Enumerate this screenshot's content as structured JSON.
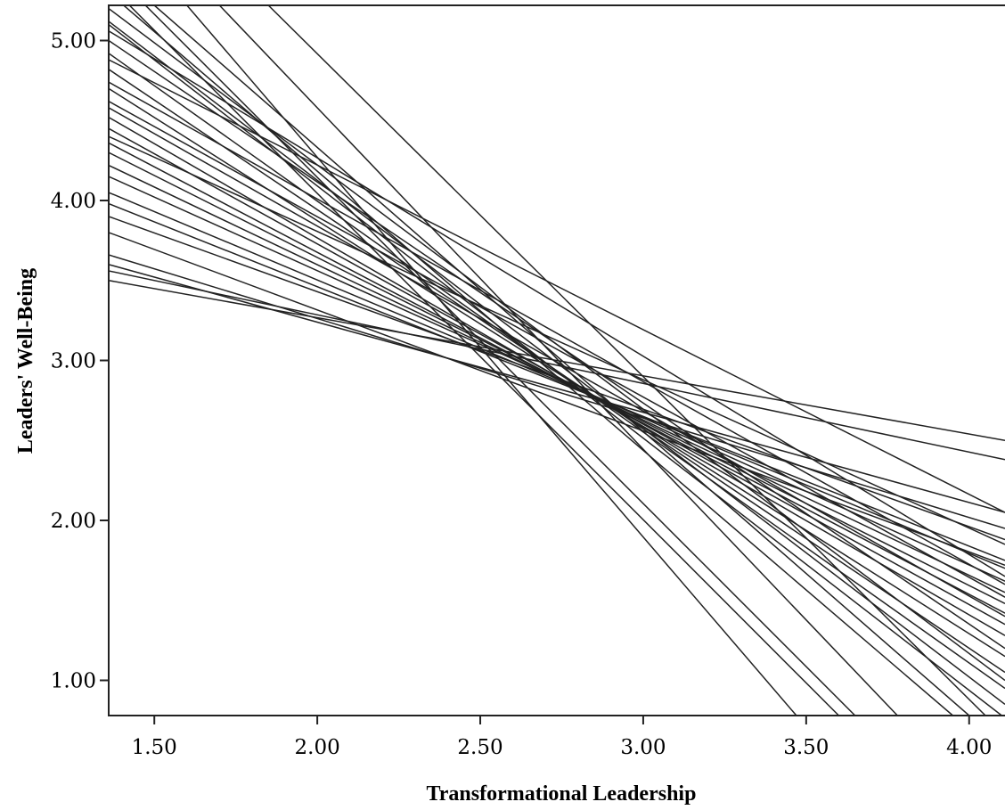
{
  "chart_data": {
    "type": "line",
    "title": "",
    "xlabel": "Transformational Leadership",
    "ylabel": "Leaders' Well-Being",
    "xlim": [
      1.36,
      4.11
    ],
    "ylim": [
      0.78,
      5.22
    ],
    "grid": false,
    "legend": "none",
    "xticks": [
      {
        "value": 1.5,
        "label": "1.50"
      },
      {
        "value": 2.0,
        "label": "2.00"
      },
      {
        "value": 2.5,
        "label": "2.50"
      },
      {
        "value": 3.0,
        "label": "3.00"
      },
      {
        "value": 3.5,
        "label": "3.50"
      },
      {
        "value": 4.0,
        "label": "4.00"
      }
    ],
    "yticks": [
      {
        "value": 1.0,
        "label": "1.00"
      },
      {
        "value": 2.0,
        "label": "2.00"
      },
      {
        "value": 3.0,
        "label": "3.00"
      },
      {
        "value": 4.0,
        "label": "4.00"
      },
      {
        "value": 5.0,
        "label": "5.00"
      }
    ],
    "series": [
      {
        "x": [
          1.36,
          4.11
        ],
        "y": [
          3.5,
          2.5
        ]
      },
      {
        "x": [
          1.36,
          4.11
        ],
        "y": [
          3.56,
          2.38
        ]
      },
      {
        "x": [
          1.36,
          4.11
        ],
        "y": [
          3.6,
          2.05
        ]
      },
      {
        "x": [
          1.36,
          4.11
        ],
        "y": [
          3.66,
          1.95
        ]
      },
      {
        "x": [
          1.36,
          4.11
        ],
        "y": [
          3.9,
          1.88
        ]
      },
      {
        "x": [
          1.36,
          4.11
        ],
        "y": [
          3.98,
          1.75
        ]
      },
      {
        "x": [
          1.36,
          4.11
        ],
        "y": [
          4.05,
          1.7
        ]
      },
      {
        "x": [
          1.36,
          4.11
        ],
        "y": [
          4.15,
          1.62
        ]
      },
      {
        "x": [
          1.36,
          4.11
        ],
        "y": [
          4.22,
          1.55
        ]
      },
      {
        "x": [
          1.36,
          4.11
        ],
        "y": [
          4.3,
          1.48
        ]
      },
      {
        "x": [
          1.36,
          4.11
        ],
        "y": [
          4.36,
          1.42
        ]
      },
      {
        "x": [
          1.36,
          4.11
        ],
        "y": [
          4.45,
          1.35
        ]
      },
      {
        "x": [
          1.36,
          4.11
        ],
        "y": [
          4.52,
          1.28
        ]
      },
      {
        "x": [
          1.36,
          4.11
        ],
        "y": [
          4.58,
          1.4
        ]
      },
      {
        "x": [
          1.36,
          4.11
        ],
        "y": [
          4.62,
          1.52
        ]
      },
      {
        "x": [
          1.36,
          4.11
        ],
        "y": [
          4.7,
          1.15
        ]
      },
      {
        "x": [
          1.36,
          4.11
        ],
        "y": [
          4.74,
          1.6
        ]
      },
      {
        "x": [
          1.36,
          4.11
        ],
        "y": [
          4.82,
          1.05
        ]
      },
      {
        "x": [
          1.36,
          4.11
        ],
        "y": [
          4.92,
          0.95
        ]
      },
      {
        "x": [
          1.36,
          4.11
        ],
        "y": [
          5.0,
          1.2
        ]
      },
      {
        "x": [
          1.36,
          4.11
        ],
        "y": [
          5.06,
          1.65
        ]
      },
      {
        "x": [
          1.36,
          4.11
        ],
        "y": [
          5.12,
          0.85
        ]
      },
      {
        "x": [
          1.36,
          4.11
        ],
        "y": [
          5.2,
          1.0
        ]
      },
      {
        "x": [
          1.36,
          4.11
        ],
        "y": [
          4.88,
          2.05
        ]
      },
      {
        "x": [
          1.36,
          4.11
        ],
        "y": [
          4.4,
          1.85
        ]
      },
      {
        "x": [
          1.36,
          4.11
        ],
        "y": [
          3.8,
          1.72
        ]
      },
      {
        "x": [
          1.36,
          3.6
        ],
        "y": [
          5.35,
          0.78
        ]
      },
      {
        "x": [
          1.6,
          3.47
        ],
        "y": [
          5.22,
          0.78
        ]
      },
      {
        "x": [
          1.7,
          3.78
        ],
        "y": [
          5.22,
          0.78
        ]
      },
      {
        "x": [
          1.85,
          4.05
        ],
        "y": [
          5.22,
          0.78
        ]
      },
      {
        "x": [
          1.36,
          3.65
        ],
        "y": [
          5.45,
          0.78
        ]
      },
      {
        "x": [
          1.36,
          3.95
        ],
        "y": [
          5.3,
          0.78
        ]
      },
      {
        "x": [
          1.36,
          4.1
        ],
        "y": [
          5.1,
          0.78
        ]
      },
      {
        "x": [
          1.5,
          4.0
        ],
        "y": [
          5.22,
          0.78
        ]
      }
    ]
  }
}
